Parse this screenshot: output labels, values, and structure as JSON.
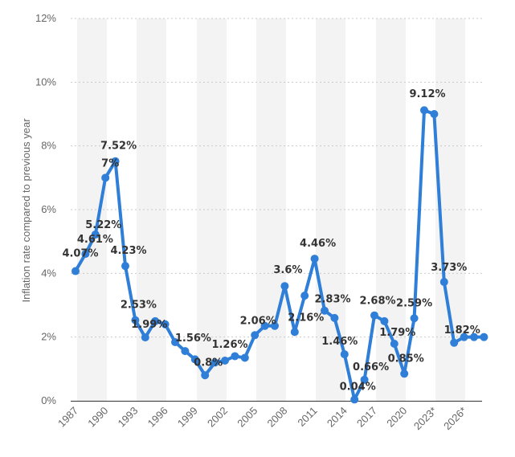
{
  "chart_data": {
    "type": "line",
    "ylabel": "Inflation rate compared to previous year",
    "xlabel": "",
    "ylim": [
      0,
      12
    ],
    "yticks": [
      "0%",
      "2%",
      "4%",
      "6%",
      "8%",
      "10%",
      "12%"
    ],
    "ytick_values": [
      0,
      2,
      4,
      6,
      8,
      10,
      12
    ],
    "xtick_labels": [
      "1987",
      "1990",
      "1993",
      "1996",
      "1999",
      "2002",
      "2005",
      "2008",
      "2011",
      "2014",
      "2017",
      "2020",
      "2023*",
      "2026*"
    ],
    "grid": true,
    "color": "#2f7ed8",
    "x": [
      "1987",
      "1988",
      "1989",
      "1990",
      "1991",
      "1992",
      "1993",
      "1994",
      "1995",
      "1996",
      "1997",
      "1998",
      "1999",
      "2000",
      "2001",
      "2002",
      "2003",
      "2004",
      "2005",
      "2006",
      "2007",
      "2008",
      "2009",
      "2010",
      "2011",
      "2012",
      "2013",
      "2014",
      "2015",
      "2016",
      "2017",
      "2018",
      "2019",
      "2020",
      "2021",
      "2022",
      "2023*",
      "2024*",
      "2025*",
      "2026*",
      "2027*",
      "2028*"
    ],
    "values": [
      4.07,
      4.61,
      5.22,
      7.0,
      7.52,
      4.23,
      2.53,
      1.99,
      2.5,
      2.4,
      1.84,
      1.56,
      1.3,
      0.8,
      1.2,
      1.26,
      1.4,
      1.35,
      2.06,
      2.35,
      2.35,
      3.6,
      2.16,
      3.3,
      4.46,
      2.83,
      2.6,
      1.46,
      0.04,
      0.66,
      2.68,
      2.5,
      1.79,
      0.85,
      2.59,
      9.12,
      9.0,
      3.73,
      1.82,
      2.0,
      2.0,
      2.0
    ],
    "data_labels": [
      {
        "x": "1987",
        "text": "4.07%"
      },
      {
        "x": "1988",
        "text": "4.61%"
      },
      {
        "x": "1989",
        "text": "5.22%"
      },
      {
        "x": "1990",
        "text": "7%"
      },
      {
        "x": "1991",
        "text": "7.52%"
      },
      {
        "x": "1992",
        "text": "4.23%"
      },
      {
        "x": "1993",
        "text": "2.53%"
      },
      {
        "x": "1994",
        "text": "1.99%"
      },
      {
        "x": "1998",
        "text": "1.56%"
      },
      {
        "x": "2000",
        "text": "0.8%"
      },
      {
        "x": "2002",
        "text": "1.26%"
      },
      {
        "x": "2005",
        "text": "2.06%"
      },
      {
        "x": "2008",
        "text": "3.6%"
      },
      {
        "x": "2009",
        "text": "2.16%"
      },
      {
        "x": "2011",
        "text": "4.46%"
      },
      {
        "x": "2012",
        "text": "2.83%"
      },
      {
        "x": "2014",
        "text": "1.46%"
      },
      {
        "x": "2015",
        "text": "0.04%"
      },
      {
        "x": "2016",
        "text": "0.66%"
      },
      {
        "x": "2017",
        "text": "2.68%"
      },
      {
        "x": "2019",
        "text": "1.79%"
      },
      {
        "x": "2020",
        "text": "0.85%"
      },
      {
        "x": "2021",
        "text": "2.59%"
      },
      {
        "x": "2022",
        "text": "9.12%"
      },
      {
        "x": "2024*",
        "text": "3.73%"
      },
      {
        "x": "2025*",
        "text": "1.82%"
      }
    ]
  }
}
